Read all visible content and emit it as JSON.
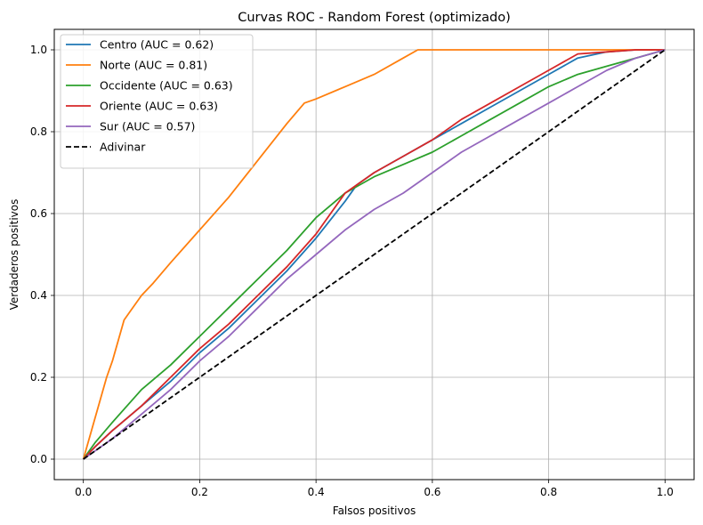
{
  "chart_data": {
    "type": "line",
    "title": "Curvas ROC - Random Forest (optimizado)",
    "xlabel": "Falsos positivos",
    "ylabel": "Verdaderos positivos",
    "xlim": [
      -0.05,
      1.05
    ],
    "ylim": [
      -0.05,
      1.05
    ],
    "xticks": [
      0.0,
      0.2,
      0.4,
      0.6,
      0.8,
      1.0
    ],
    "yticks": [
      0.0,
      0.2,
      0.4,
      0.6,
      0.8,
      1.0
    ],
    "xtick_labels": [
      "0.0",
      "0.2",
      "0.4",
      "0.6",
      "0.8",
      "1.0"
    ],
    "ytick_labels": [
      "0.0",
      "0.2",
      "0.4",
      "0.6",
      "0.8",
      "1.0"
    ],
    "grid": true,
    "legend_position": "top-left",
    "series": [
      {
        "name": "Centro (AUC = 0.62)",
        "color": "#1f77b4",
        "dash": "solid",
        "x": [
          0.0,
          0.02,
          0.05,
          0.1,
          0.15,
          0.2,
          0.25,
          0.3,
          0.35,
          0.4,
          0.45,
          0.47,
          0.5,
          0.55,
          0.6,
          0.65,
          0.7,
          0.75,
          0.8,
          0.85,
          0.9,
          0.95,
          1.0
        ],
        "y": [
          0.0,
          0.03,
          0.07,
          0.13,
          0.19,
          0.26,
          0.32,
          0.39,
          0.46,
          0.54,
          0.63,
          0.67,
          0.7,
          0.74,
          0.78,
          0.82,
          0.86,
          0.9,
          0.94,
          0.98,
          0.995,
          1.0,
          1.0
        ]
      },
      {
        "name": "Norte (AUC = 0.81)",
        "color": "#ff7f0e",
        "dash": "solid",
        "x": [
          0.0,
          0.01,
          0.02,
          0.03,
          0.04,
          0.05,
          0.06,
          0.07,
          0.08,
          0.1,
          0.12,
          0.15,
          0.2,
          0.25,
          0.3,
          0.35,
          0.38,
          0.4,
          0.45,
          0.5,
          0.55,
          0.575,
          0.6,
          0.7,
          0.8,
          0.9,
          1.0
        ],
        "y": [
          0.0,
          0.05,
          0.1,
          0.15,
          0.2,
          0.24,
          0.29,
          0.34,
          0.36,
          0.4,
          0.43,
          0.48,
          0.56,
          0.64,
          0.73,
          0.82,
          0.87,
          0.88,
          0.91,
          0.94,
          0.98,
          1.0,
          1.0,
          1.0,
          1.0,
          1.0,
          1.0
        ]
      },
      {
        "name": "Occidente (AUC = 0.63)",
        "color": "#2ca02c",
        "dash": "solid",
        "x": [
          0.0,
          0.02,
          0.05,
          0.1,
          0.15,
          0.2,
          0.25,
          0.3,
          0.35,
          0.4,
          0.45,
          0.5,
          0.55,
          0.6,
          0.65,
          0.7,
          0.75,
          0.8,
          0.85,
          0.9,
          0.95,
          1.0
        ],
        "y": [
          0.0,
          0.04,
          0.09,
          0.17,
          0.23,
          0.3,
          0.37,
          0.44,
          0.51,
          0.59,
          0.65,
          0.69,
          0.72,
          0.75,
          0.79,
          0.83,
          0.87,
          0.91,
          0.94,
          0.96,
          0.98,
          1.0
        ]
      },
      {
        "name": "Oriente (AUC = 0.63)",
        "color": "#d62728",
        "dash": "solid",
        "x": [
          0.0,
          0.02,
          0.05,
          0.1,
          0.15,
          0.2,
          0.25,
          0.3,
          0.35,
          0.4,
          0.45,
          0.5,
          0.55,
          0.6,
          0.65,
          0.7,
          0.75,
          0.8,
          0.85,
          0.9,
          0.95,
          1.0
        ],
        "y": [
          0.0,
          0.03,
          0.07,
          0.13,
          0.2,
          0.27,
          0.33,
          0.4,
          0.47,
          0.55,
          0.65,
          0.7,
          0.74,
          0.78,
          0.83,
          0.87,
          0.91,
          0.95,
          0.99,
          0.995,
          1.0,
          1.0
        ]
      },
      {
        "name": "Sur (AUC = 0.57)",
        "color": "#9467bd",
        "dash": "solid",
        "x": [
          0.0,
          0.02,
          0.05,
          0.1,
          0.15,
          0.2,
          0.25,
          0.3,
          0.35,
          0.4,
          0.45,
          0.5,
          0.55,
          0.6,
          0.65,
          0.7,
          0.75,
          0.8,
          0.85,
          0.9,
          0.95,
          1.0
        ],
        "y": [
          0.0,
          0.02,
          0.05,
          0.11,
          0.17,
          0.24,
          0.3,
          0.37,
          0.44,
          0.5,
          0.56,
          0.61,
          0.65,
          0.7,
          0.75,
          0.79,
          0.83,
          0.87,
          0.91,
          0.95,
          0.98,
          1.0
        ]
      },
      {
        "name": "Adivinar",
        "color": "#000000",
        "dash": "dashed",
        "x": [
          0.0,
          1.0
        ],
        "y": [
          0.0,
          1.0
        ]
      }
    ]
  }
}
